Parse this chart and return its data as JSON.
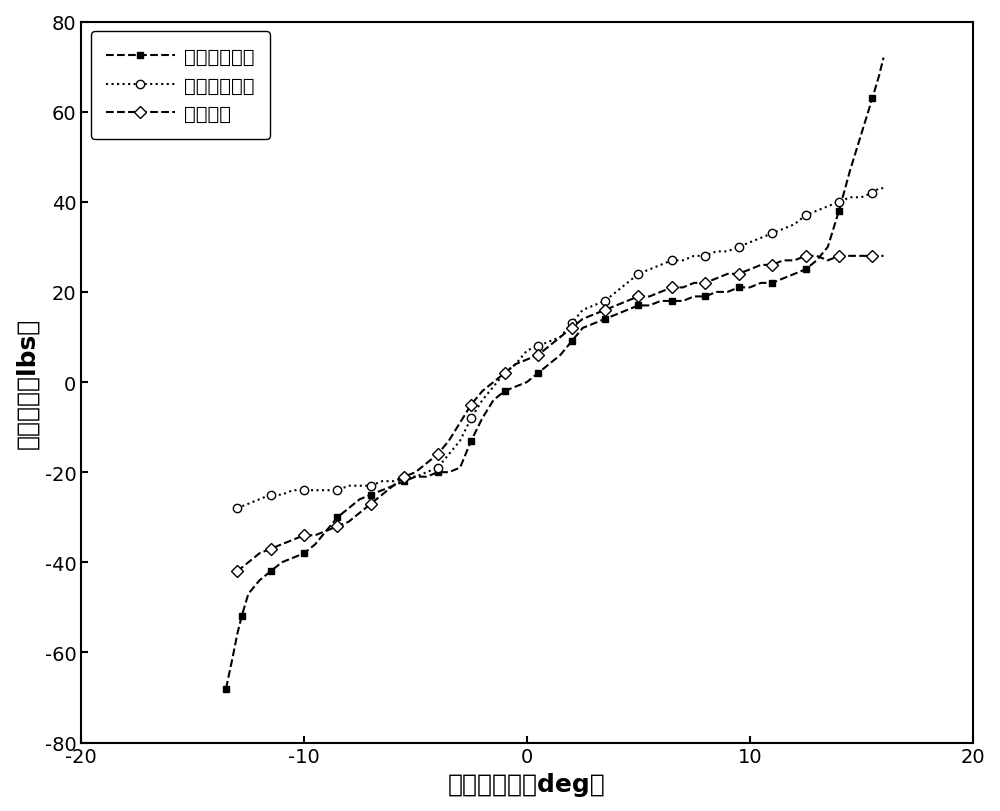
{
  "title": "",
  "xlabel": "驾驶杆位置（deg）",
  "ylabel": "驾驶杆力（lbs）",
  "xlim": [
    -20,
    20
  ],
  "ylim": [
    -80,
    80
  ],
  "xticks": [
    -20,
    -10,
    0,
    10,
    20
  ],
  "yticks": [
    -80,
    -60,
    -40,
    -20,
    0,
    20,
    40,
    60,
    80
  ],
  "legend_labels": [
    "拉杆数据拟合",
    "推杆数据拟合",
    "原始数据"
  ],
  "background_color": "#ffffff",
  "line_color": "#000000",
  "series1_x": [
    -13.5,
    -13.2,
    -13.0,
    -12.8,
    -12.5,
    -12.0,
    -11.5,
    -11.0,
    -10.5,
    -10.0,
    -9.5,
    -9.0,
    -8.5,
    -8.0,
    -7.5,
    -7.0,
    -6.5,
    -6.0,
    -5.5,
    -5.0,
    -4.5,
    -4.0,
    -3.5,
    -3.0,
    -2.5,
    -2.0,
    -1.5,
    -1.0,
    -0.5,
    0.0,
    0.5,
    1.0,
    1.5,
    2.0,
    2.5,
    3.0,
    3.5,
    4.0,
    4.5,
    5.0,
    5.5,
    6.0,
    6.5,
    7.0,
    7.5,
    8.0,
    8.5,
    9.0,
    9.5,
    10.0,
    10.5,
    11.0,
    11.5,
    12.0,
    12.5,
    13.0,
    13.5,
    14.0,
    14.5,
    15.0,
    15.5,
    15.8,
    16.0
  ],
  "series1_y": [
    -68,
    -61,
    -56,
    -52,
    -47,
    -44,
    -42,
    -40,
    -39,
    -38,
    -36,
    -33,
    -30,
    -28,
    -26,
    -25,
    -24,
    -23,
    -22,
    -21,
    -21,
    -20,
    -20,
    -19,
    -13,
    -8,
    -4,
    -2,
    -1,
    0,
    2,
    4,
    6,
    9,
    12,
    13,
    14,
    15,
    16,
    17,
    17,
    18,
    18,
    18,
    19,
    19,
    20,
    20,
    21,
    21,
    22,
    22,
    23,
    24,
    25,
    27,
    30,
    38,
    47,
    55,
    63,
    68,
    72
  ],
  "series2_x": [
    -13.0,
    -12.5,
    -12.0,
    -11.5,
    -11.0,
    -10.5,
    -10.0,
    -9.5,
    -9.0,
    -8.5,
    -8.0,
    -7.5,
    -7.0,
    -6.5,
    -6.0,
    -5.5,
    -5.0,
    -4.5,
    -4.0,
    -3.5,
    -3.0,
    -2.5,
    -2.0,
    -1.5,
    -1.0,
    -0.5,
    0.0,
    0.5,
    1.0,
    1.5,
    2.0,
    2.5,
    3.0,
    3.5,
    4.0,
    4.5,
    5.0,
    5.5,
    6.0,
    6.5,
    7.0,
    7.5,
    8.0,
    8.5,
    9.0,
    9.5,
    10.0,
    10.5,
    11.0,
    11.5,
    12.0,
    12.5,
    13.0,
    13.5,
    14.0,
    14.5,
    15.0,
    15.5,
    15.8,
    16.0
  ],
  "series2_y": [
    -28,
    -27,
    -26,
    -25,
    -25,
    -24,
    -24,
    -24,
    -24,
    -24,
    -23,
    -23,
    -23,
    -22,
    -22,
    -21,
    -21,
    -20,
    -19,
    -16,
    -13,
    -8,
    -4,
    -1,
    2,
    4,
    7,
    8,
    9,
    10,
    13,
    16,
    17,
    18,
    20,
    22,
    24,
    25,
    26,
    27,
    27,
    28,
    28,
    29,
    29,
    30,
    31,
    32,
    33,
    34,
    35,
    37,
    38,
    39,
    40,
    41,
    41,
    42,
    43,
    43
  ],
  "series3_x": [
    -13.0,
    -12.5,
    -12.0,
    -11.5,
    -11.0,
    -10.5,
    -10.0,
    -9.5,
    -9.0,
    -8.5,
    -8.0,
    -7.5,
    -7.0,
    -6.5,
    -6.0,
    -5.5,
    -5.0,
    -4.5,
    -4.0,
    -3.5,
    -3.0,
    -2.5,
    -2.0,
    -1.5,
    -1.0,
    -0.5,
    0.0,
    0.5,
    1.0,
    1.5,
    2.0,
    2.5,
    3.0,
    3.5,
    4.0,
    4.5,
    5.0,
    5.5,
    6.0,
    6.5,
    7.0,
    7.5,
    8.0,
    8.5,
    9.0,
    9.5,
    10.0,
    10.5,
    11.0,
    11.5,
    12.0,
    12.5,
    13.0,
    13.5,
    14.0,
    14.5,
    15.0,
    15.5,
    16.0
  ],
  "series3_y": [
    -42,
    -40,
    -38,
    -37,
    -36,
    -35,
    -34,
    -34,
    -33,
    -32,
    -31,
    -29,
    -27,
    -25,
    -23,
    -21,
    -20,
    -18,
    -16,
    -13,
    -9,
    -5,
    -2,
    0,
    2,
    4,
    5,
    6,
    8,
    10,
    12,
    14,
    15,
    16,
    17,
    18,
    19,
    19,
    20,
    21,
    21,
    22,
    22,
    23,
    24,
    24,
    25,
    26,
    26,
    27,
    27,
    28,
    28,
    27,
    28,
    28,
    28,
    28,
    28
  ]
}
